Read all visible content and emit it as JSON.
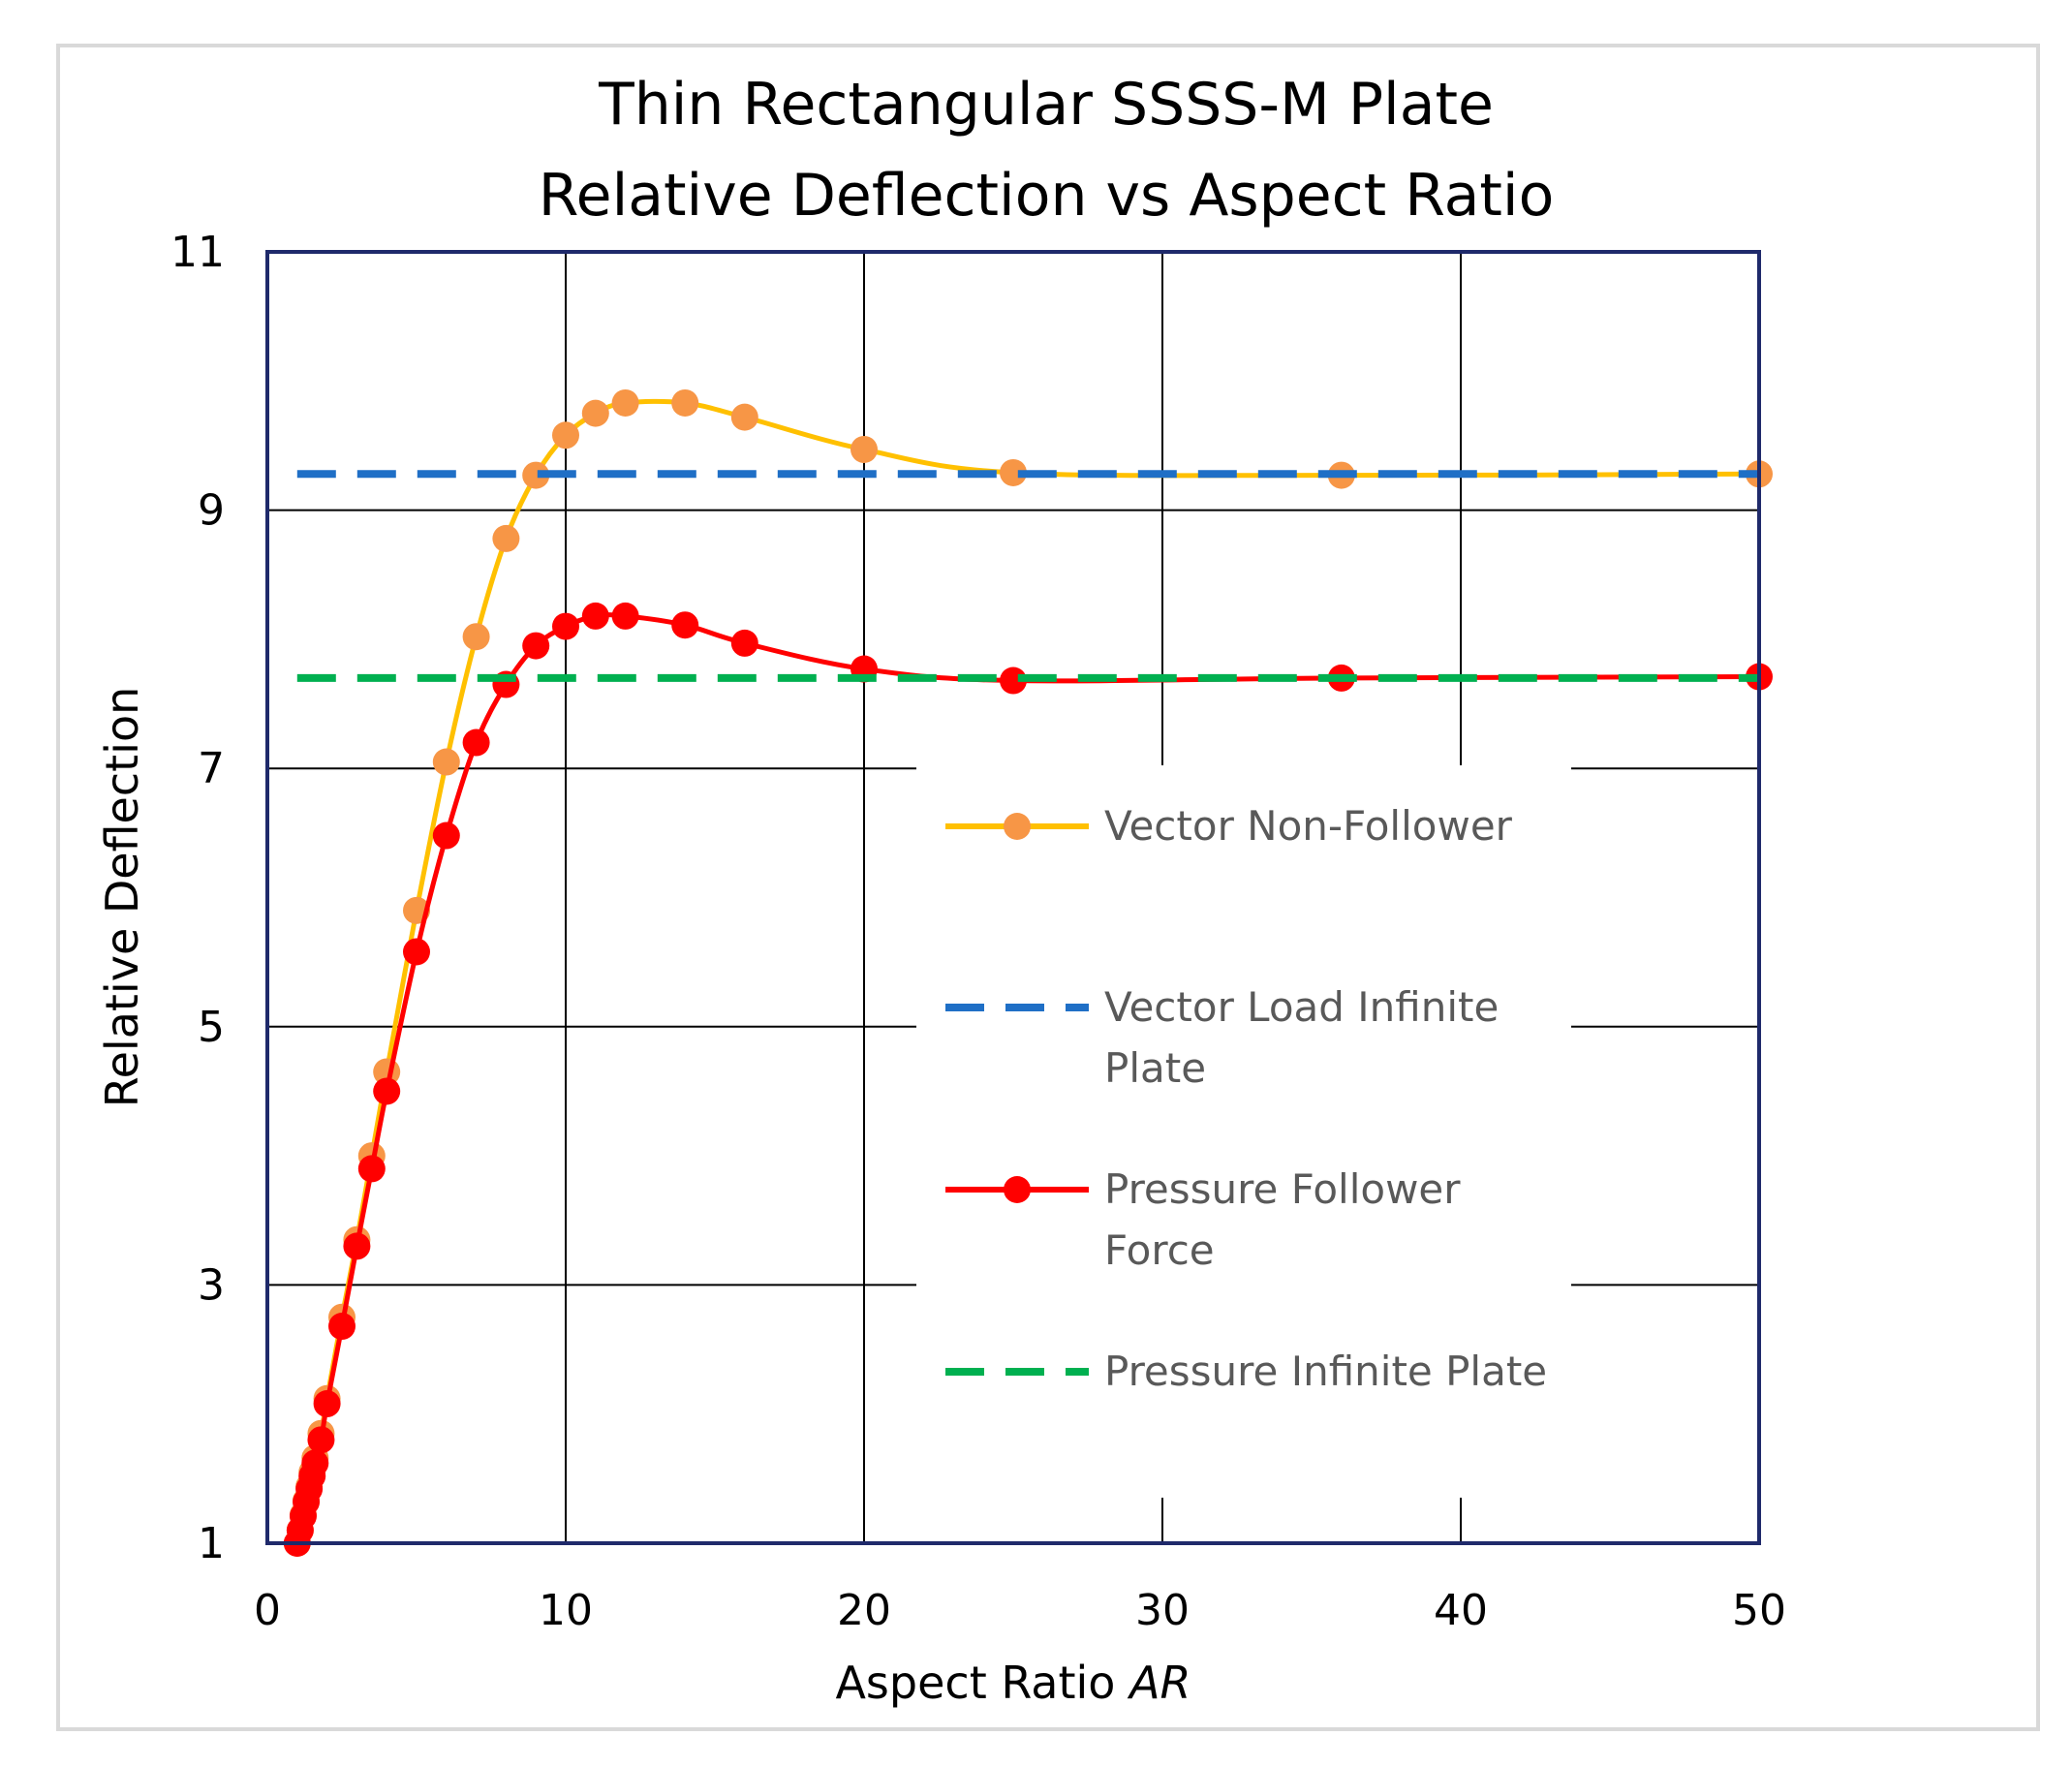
{
  "chart_data": {
    "type": "line",
    "title": [
      "Thin Rectangular SSSS-M Plate",
      "Relative Deflection vs Aspect Ratio"
    ],
    "xlabel": "Aspect Ratio",
    "xlabel_italic": "AR",
    "ylabel": "Relative Deflection",
    "xlim": [
      0,
      50
    ],
    "ylim": [
      1,
      11
    ],
    "x_ticks": [
      0,
      10,
      20,
      30,
      40,
      50
    ],
    "y_ticks": [
      1,
      3,
      5,
      7,
      9,
      11
    ],
    "grid": true,
    "legend_position": "lower-right",
    "series": [
      {
        "name": "Vector Non-Follower",
        "style": "line-markers",
        "color": "#FFC000",
        "marker_color": "#F79646",
        "x": [
          1.0,
          1.1,
          1.2,
          1.3,
          1.4,
          1.5,
          1.6,
          1.8,
          2,
          2.5,
          3,
          3.5,
          4,
          5,
          6,
          7,
          8,
          9,
          10,
          11,
          12,
          14,
          16,
          20,
          25,
          36,
          50
        ],
        "y": [
          1.0,
          1.1,
          1.22,
          1.33,
          1.44,
          1.55,
          1.66,
          1.85,
          2.12,
          2.75,
          3.35,
          4.0,
          4.65,
          5.9,
          7.05,
          8.02,
          8.78,
          9.27,
          9.58,
          9.75,
          9.83,
          9.83,
          9.72,
          9.47,
          9.29,
          9.27,
          9.28
        ]
      },
      {
        "name": "Vector Load Infinite Plate",
        "style": "dashed",
        "color": "#1F6FC6",
        "x": [
          1,
          50
        ],
        "y": [
          9.28,
          9.28
        ]
      },
      {
        "name": "Pressure Follower Force",
        "style": "line-markers",
        "color": "#FF0000",
        "marker_color": "#FF0000",
        "x": [
          1.0,
          1.1,
          1.2,
          1.3,
          1.4,
          1.5,
          1.6,
          1.8,
          2,
          2.5,
          3,
          3.5,
          4,
          5,
          6,
          7,
          8,
          9,
          10,
          11,
          12,
          14,
          16,
          20,
          25,
          36,
          50
        ],
        "y": [
          1.0,
          1.1,
          1.21,
          1.32,
          1.42,
          1.52,
          1.62,
          1.8,
          2.08,
          2.68,
          3.3,
          3.9,
          4.5,
          5.58,
          6.48,
          7.2,
          7.65,
          7.95,
          8.1,
          8.18,
          8.18,
          8.11,
          7.97,
          7.77,
          7.68,
          7.7,
          7.71
        ]
      },
      {
        "name": "Pressure Infinite Plate",
        "style": "dashed",
        "color": "#00B050",
        "x": [
          1,
          50
        ],
        "y": [
          7.7,
          7.7
        ]
      }
    ],
    "legend_entries": [
      [
        "Vector Non-Follower"
      ],
      [
        "Vector Load Infinite",
        "Plate"
      ],
      [
        "Pressure Follower",
        "Force"
      ],
      [
        "Pressure Infinite Plate"
      ]
    ],
    "colors": {
      "plot_border": "#1F2A6B",
      "grid": "#000000",
      "outer_border": "#D9D9D9"
    }
  }
}
